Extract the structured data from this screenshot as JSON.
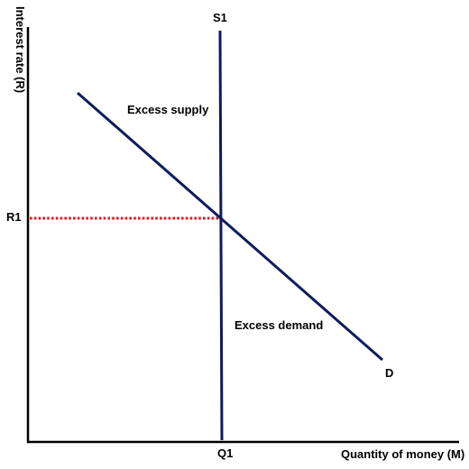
{
  "labels": {
    "y_axis": "Interest rate (R)",
    "x_axis": "Quantity of money (M)",
    "supply_curve": "S1",
    "demand_curve": "D",
    "equilibrium_rate": "R1",
    "equilibrium_quantity": "Q1",
    "region_above": "Excess supply",
    "region_below": "Excess demand"
  },
  "colors": {
    "axes": "#000000",
    "curves": "#0d1b5e",
    "guide_line": "#e8141e"
  }
}
